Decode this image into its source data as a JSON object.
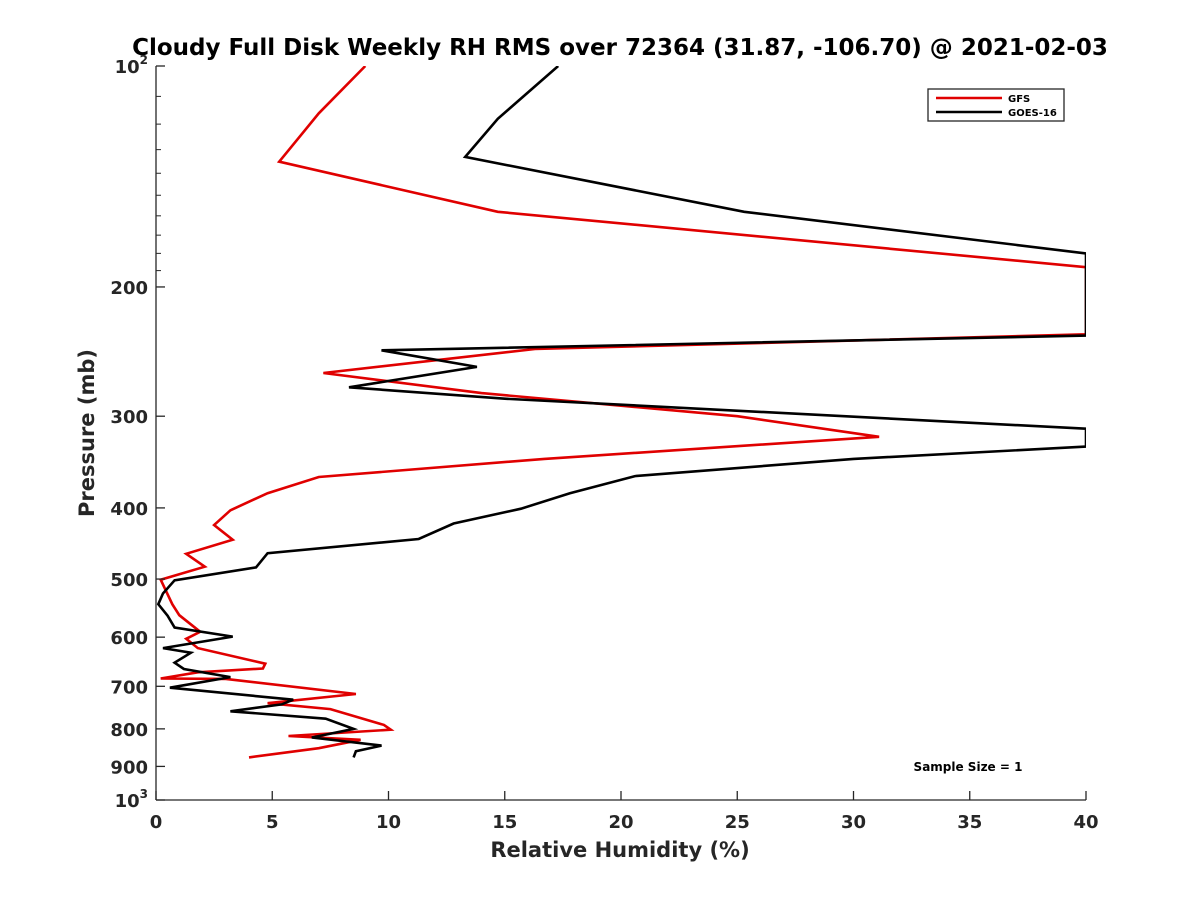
{
  "chart_data": {
    "type": "line",
    "title": "Cloudy Full Disk Weekly RH RMS over 72364 (31.87, -106.70) @ 2021-02-03",
    "xlabel": "Relative Humidity (%)",
    "ylabel": "Pressure (mb)",
    "xlim": [
      0,
      40
    ],
    "ylim": [
      100,
      1000
    ],
    "yscale": "log",
    "y_reversed": true,
    "grid": false,
    "legend_position": "top-right",
    "x_ticks": [
      "0",
      "5",
      "10",
      "15",
      "20",
      "25",
      "30",
      "35",
      "40"
    ],
    "y_ticks": [
      {
        "value": 100,
        "base": "10",
        "exp": "2"
      },
      {
        "value": 200,
        "label": "200"
      },
      {
        "value": 300,
        "label": "300"
      },
      {
        "value": 400,
        "label": "400"
      },
      {
        "value": 500,
        "label": "500"
      },
      {
        "value": 600,
        "label": "600"
      },
      {
        "value": 700,
        "label": "700"
      },
      {
        "value": 800,
        "label": "800"
      },
      {
        "value": 900,
        "label": "900"
      },
      {
        "value": 1000,
        "base": "10",
        "exp": "3"
      }
    ],
    "annotation": "Sample Size = 1",
    "series": [
      {
        "name": "GFS",
        "color": "#e00000",
        "points": [
          [
            9.0,
            100
          ],
          [
            7.0,
            116
          ],
          [
            5.3,
            135
          ],
          [
            14.7,
            158
          ],
          [
            40.0,
            188
          ],
          [
            40.0,
            232
          ],
          [
            16.3,
            243
          ],
          [
            7.2,
            262
          ],
          [
            14.0,
            279
          ],
          [
            25.0,
            300
          ],
          [
            31.1,
            320
          ],
          [
            16.7,
            343
          ],
          [
            7.0,
            363
          ],
          [
            4.8,
            382
          ],
          [
            3.2,
            403
          ],
          [
            2.5,
            422
          ],
          [
            3.3,
            442
          ],
          [
            1.3,
            462
          ],
          [
            2.1,
            481
          ],
          [
            0.2,
            501
          ],
          [
            0.7,
            541
          ],
          [
            1.0,
            560
          ],
          [
            1.9,
            590
          ],
          [
            1.3,
            603
          ],
          [
            1.8,
            621
          ],
          [
            4.7,
            652
          ],
          [
            4.6,
            662
          ],
          [
            1.8,
            670
          ],
          [
            0.2,
            683
          ],
          [
            3.0,
            684
          ],
          [
            8.6,
            717
          ],
          [
            4.8,
            738
          ],
          [
            7.5,
            752
          ],
          [
            9.8,
            790
          ],
          [
            10.1,
            802
          ],
          [
            5.7,
            818
          ],
          [
            8.8,
            828
          ],
          [
            7.0,
            850
          ],
          [
            4.0,
            875
          ]
        ]
      },
      {
        "name": "GOES-16",
        "color": "#000000",
        "points": [
          [
            17.3,
            100
          ],
          [
            14.7,
            118
          ],
          [
            13.3,
            133
          ],
          [
            25.3,
            158
          ],
          [
            40.0,
            180
          ],
          [
            40.0,
            233
          ],
          [
            9.7,
            244
          ],
          [
            13.8,
            257
          ],
          [
            8.3,
            274
          ],
          [
            15.0,
            284
          ],
          [
            40.0,
            312
          ],
          [
            40.0,
            330
          ],
          [
            30.0,
            343
          ],
          [
            20.6,
            362
          ],
          [
            17.8,
            382
          ],
          [
            15.7,
            401
          ],
          [
            12.8,
            420
          ],
          [
            11.3,
            441
          ],
          [
            4.8,
            461
          ],
          [
            4.3,
            482
          ],
          [
            0.8,
            502
          ],
          [
            0.3,
            523
          ],
          [
            0.1,
            541
          ],
          [
            0.5,
            561
          ],
          [
            0.8,
            582
          ],
          [
            3.3,
            599
          ],
          [
            0.3,
            621
          ],
          [
            1.5,
            630
          ],
          [
            0.8,
            650
          ],
          [
            1.2,
            663
          ],
          [
            3.2,
            680
          ],
          [
            0.6,
            703
          ],
          [
            5.9,
            730
          ],
          [
            5.4,
            741
          ],
          [
            3.2,
            757
          ],
          [
            7.3,
            775
          ],
          [
            8.5,
            800
          ],
          [
            6.7,
            822
          ],
          [
            9.7,
            843
          ],
          [
            8.6,
            858
          ],
          [
            8.5,
            875
          ]
        ]
      }
    ]
  }
}
